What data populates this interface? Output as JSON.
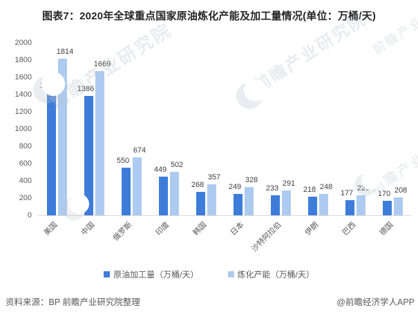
{
  "title": "图表7：2020年全球重点国家原油炼化产能及加工量情况(单位：万桶/天)",
  "chart_data": {
    "type": "bar",
    "title": "图表7：2020年全球重点国家原油炼化产能及加工量情况(单位：万桶/天)",
    "categories": [
      "美国",
      "中国",
      "俄罗斯",
      "印度",
      "韩国",
      "日本",
      "沙特阿拉伯",
      "伊朗",
      "巴西",
      "德国"
    ],
    "series": [
      {
        "name": "原油加工量（万桶/天）",
        "color": "#3D7CD9",
        "values": [
          1421,
          1386,
          550,
          449,
          268,
          249,
          233,
          218,
          177,
          170
        ]
      },
      {
        "name": "炼化产能（万桶/天）",
        "color": "#ADCBF0",
        "values": [
          1814,
          1669,
          674,
          502,
          357,
          328,
          291,
          248,
          229,
          208
        ]
      }
    ],
    "ylim": [
      0,
      2000
    ],
    "ytick_step": 200,
    "grid": false,
    "legend_position": "bottom",
    "value_labels": true,
    "xlabel": "",
    "ylabel": ""
  },
  "footer": {
    "source": "资料来源：BP 前瞻产业研究院整理",
    "credit": "@前瞻经济学人APP"
  },
  "watermark": {
    "text": "前瞻产业研究院"
  },
  "colors": {
    "series1": "#3D7CD9",
    "series2": "#ADCBF0",
    "axis_line": "#D8D8D8",
    "axis_text": "#595959",
    "value_text": "#404040",
    "title_text": "#262626",
    "watermark": "#B2BCCC"
  }
}
